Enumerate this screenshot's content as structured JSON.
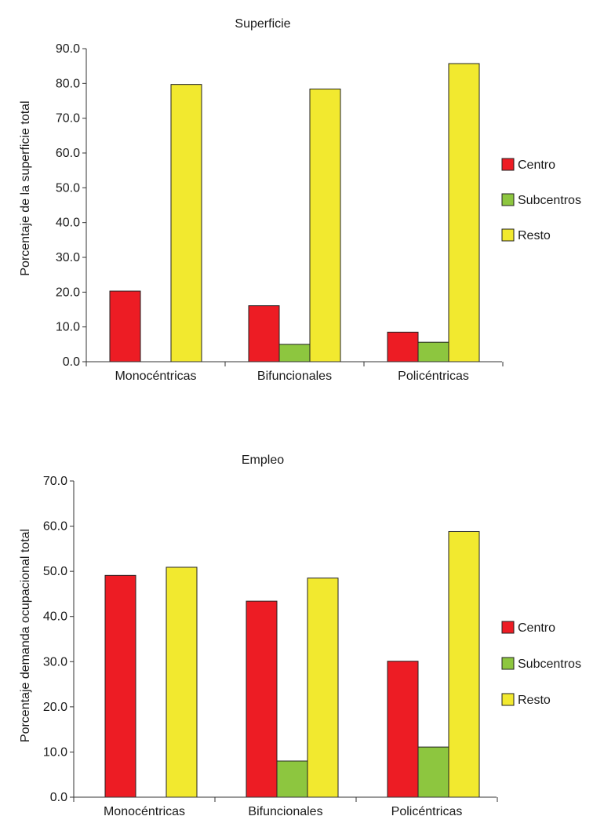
{
  "chart_data": [
    {
      "type": "bar",
      "title": "Superficie",
      "ylabel": "Porcentaje de la superficie total",
      "xlabel": "",
      "categories": [
        "Monocéntricas",
        "Bifuncionales",
        "Policéntricas"
      ],
      "series": [
        {
          "name": "Centro",
          "color": "#ed1c24",
          "values": [
            20.3,
            16.1,
            8.5
          ]
        },
        {
          "name": "Subcentros",
          "color": "#8dc63f",
          "values": [
            0,
            5.0,
            5.6
          ]
        },
        {
          "name": "Resto",
          "color": "#f2e92f",
          "values": [
            79.7,
            78.4,
            85.7
          ]
        }
      ],
      "ylim": [
        0,
        90
      ],
      "yticks": [
        0,
        10,
        20,
        30,
        40,
        50,
        60,
        70,
        80,
        90
      ],
      "ytick_labels": [
        "0.0",
        "10.0",
        "20.0",
        "30.0",
        "40.0",
        "50.0",
        "60.0",
        "70.0",
        "80.0",
        "90.0"
      ],
      "legend_position": "right",
      "grid": false
    },
    {
      "type": "bar",
      "title": "Empleo",
      "ylabel": "Porcentaje demanda ocupacional total",
      "xlabel": "",
      "categories": [
        "Monocéntricas",
        "Bifuncionales",
        "Policéntricas"
      ],
      "series": [
        {
          "name": "Centro",
          "color": "#ed1c24",
          "values": [
            49.1,
            43.4,
            30.1
          ]
        },
        {
          "name": "Subcentros",
          "color": "#8dc63f",
          "values": [
            0,
            8.0,
            11.1
          ]
        },
        {
          "name": "Resto",
          "color": "#f2e92f",
          "values": [
            50.9,
            48.5,
            58.8
          ]
        }
      ],
      "ylim": [
        0,
        70
      ],
      "yticks": [
        0,
        10,
        20,
        30,
        40,
        50,
        60,
        70
      ],
      "ytick_labels": [
        "0.0",
        "10.0",
        "20.0",
        "30.0",
        "40.0",
        "50.0",
        "60.0",
        "70.0"
      ],
      "legend_position": "right",
      "grid": false
    }
  ]
}
